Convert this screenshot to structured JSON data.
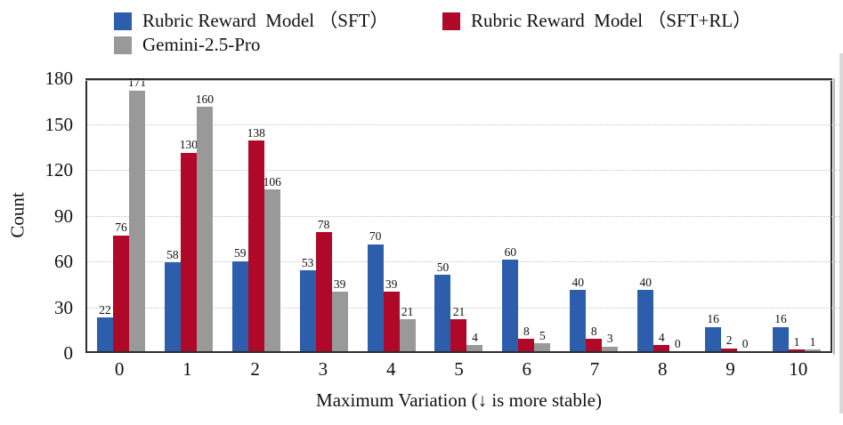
{
  "legend": {
    "items": [
      {
        "label": "Rubric Reward  Model （SFT）",
        "color": "#2C5EAC"
      },
      {
        "label": "Rubric Reward  Model （SFT+RL）",
        "color": "#B00828"
      },
      {
        "label": "Gemini-2.5-Pro",
        "color": "#999999"
      }
    ]
  },
  "chart_data": {
    "type": "bar",
    "title": "",
    "xlabel": "Maximum Variation (↓ is more stable)",
    "ylabel": "Count",
    "categories": [
      "0",
      "1",
      "2",
      "3",
      "4",
      "5",
      "6",
      "7",
      "8",
      "9",
      "10"
    ],
    "series": [
      {
        "name": "Rubric Reward Model （SFT）",
        "color": "#2C5EAC",
        "values": [
          22,
          58,
          59,
          53,
          70,
          50,
          60,
          40,
          40,
          16,
          16
        ]
      },
      {
        "name": "Rubric Reward Model （SFT+RL）",
        "color": "#B00828",
        "values": [
          76,
          130,
          138,
          78,
          39,
          21,
          8,
          8,
          4,
          2,
          1
        ]
      },
      {
        "name": "Gemini-2.5-Pro",
        "color": "#999999",
        "values": [
          171,
          160,
          106,
          39,
          21,
          4,
          5,
          3,
          0,
          0,
          1
        ]
      }
    ],
    "ylim": [
      0,
      180
    ],
    "yticks": [
      0,
      30,
      60,
      90,
      120,
      150,
      180
    ],
    "grid": "horizontal-dotted",
    "legend_position": "top-left",
    "value_labels": true
  }
}
